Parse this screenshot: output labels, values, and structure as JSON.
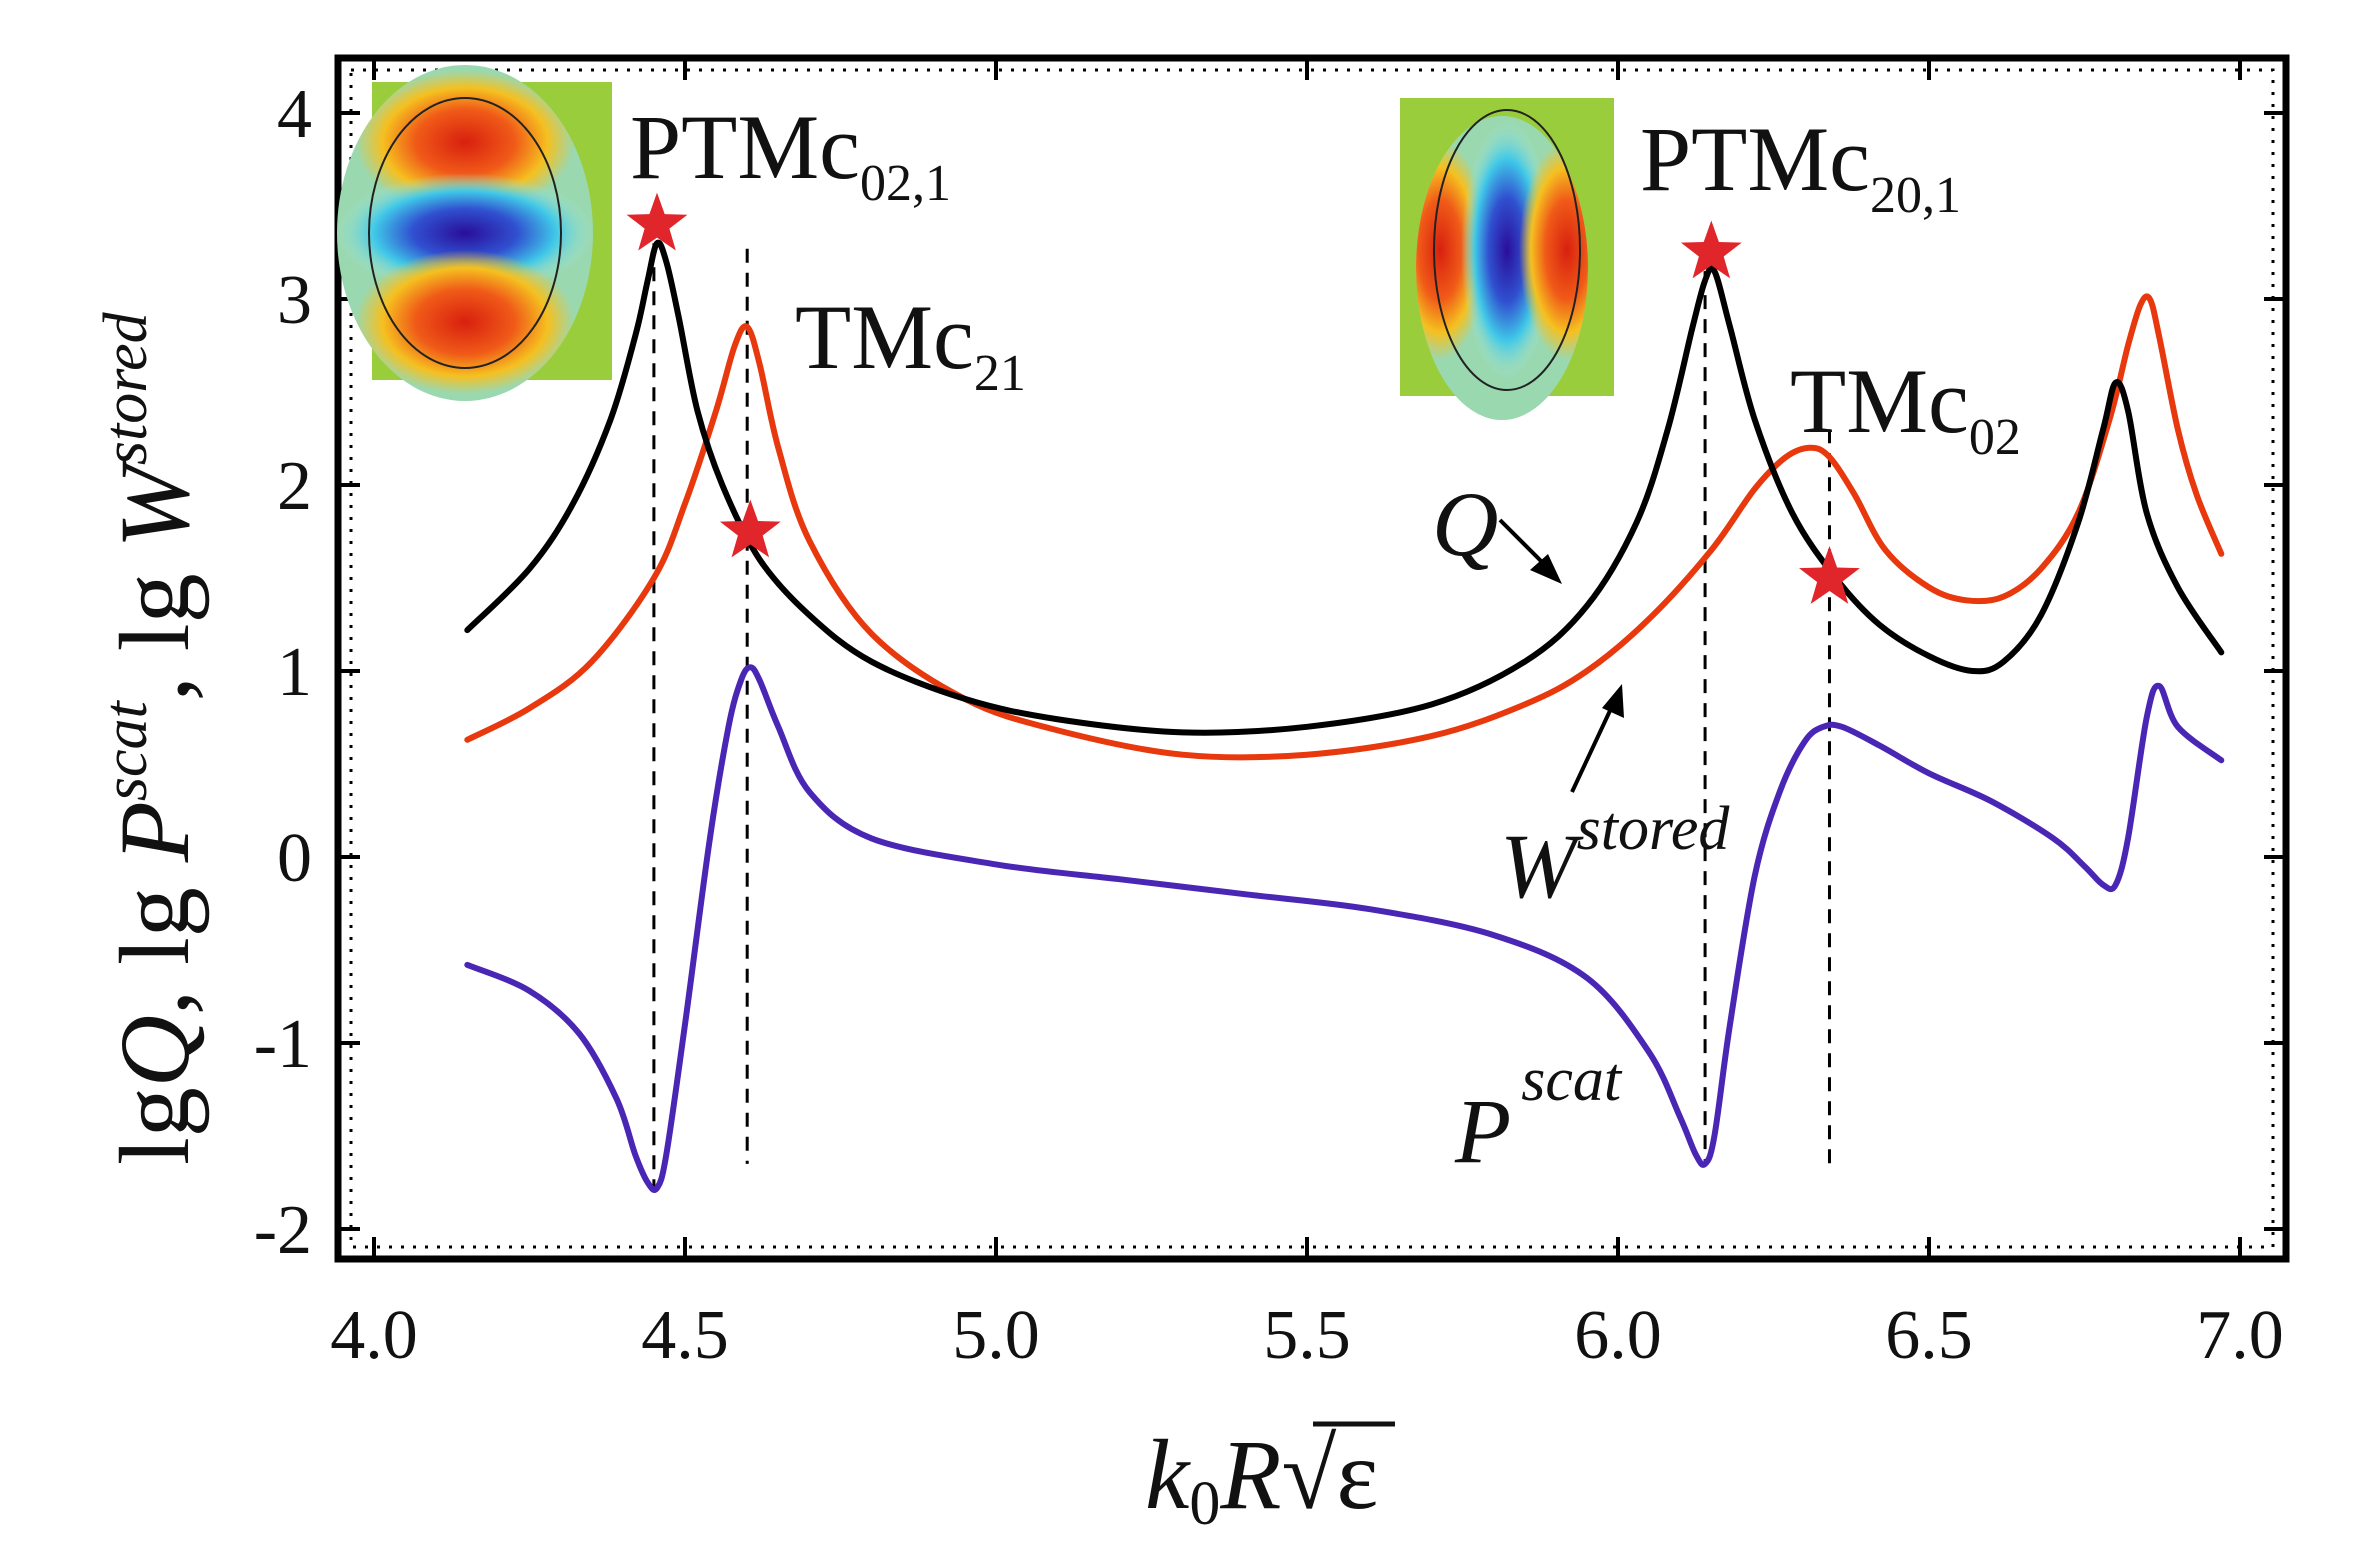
{
  "chart_data": {
    "type": "line",
    "title": "",
    "xlabel": {
      "k": "k",
      "sub": "0",
      "r": "R",
      "radical": "√",
      "eps": "ε"
    },
    "ylabel": {
      "p1": "lg",
      "q": "Q",
      "p2": ", lg ",
      "p": "P",
      "p_sup": "scat",
      "p3": ", lg ",
      "w": "W",
      "w_sup": "stored"
    },
    "xlim": [
      4.0,
      7.0
    ],
    "ylim": [
      -2,
      4.3
    ],
    "xticks": [
      4.0,
      4.5,
      5.0,
      5.5,
      6.0,
      6.5,
      7.0
    ],
    "xtick_labels": [
      "4.0",
      "4.5",
      "5.0",
      "5.5",
      "6.0",
      "6.5",
      "7.0"
    ],
    "yticks": [
      -2,
      -1,
      0,
      1,
      2,
      3,
      4
    ],
    "ytick_labels": [
      "-2",
      "-1",
      "0",
      "1",
      "2",
      "3",
      "4"
    ],
    "grid": false,
    "series": [
      {
        "name": "Q",
        "color": "#000000",
        "x": [
          4.15,
          4.25,
          4.32,
          4.38,
          4.42,
          4.44,
          4.455,
          4.47,
          4.49,
          4.52,
          4.56,
          4.62,
          4.7,
          4.8,
          4.95,
          5.1,
          5.3,
          5.5,
          5.7,
          5.85,
          5.95,
          6.03,
          6.08,
          6.12,
          6.14,
          6.155,
          6.18,
          6.22,
          6.28,
          6.35,
          6.42,
          6.5,
          6.57,
          6.62,
          6.68,
          6.74,
          6.78,
          6.8,
          6.82,
          6.85,
          6.9,
          6.97
        ],
        "y": [
          1.22,
          1.55,
          1.9,
          2.35,
          2.8,
          3.1,
          3.3,
          3.2,
          2.9,
          2.4,
          2.0,
          1.6,
          1.3,
          1.05,
          0.85,
          0.74,
          0.67,
          0.7,
          0.82,
          1.05,
          1.35,
          1.8,
          2.3,
          2.85,
          3.1,
          3.15,
          2.85,
          2.35,
          1.85,
          1.5,
          1.25,
          1.08,
          1.0,
          1.05,
          1.3,
          1.8,
          2.3,
          2.55,
          2.4,
          1.85,
          1.45,
          1.1
        ]
      },
      {
        "name": "W stored",
        "color": "#e8380d",
        "x": [
          4.15,
          4.25,
          4.35,
          4.45,
          4.5,
          4.55,
          4.58,
          4.6,
          4.62,
          4.65,
          4.7,
          4.8,
          4.95,
          5.1,
          5.3,
          5.5,
          5.7,
          5.85,
          5.95,
          6.05,
          6.15,
          6.22,
          6.27,
          6.31,
          6.34,
          6.38,
          6.43,
          6.5,
          6.56,
          6.62,
          6.68,
          6.74,
          6.79,
          6.82,
          6.84,
          6.855,
          6.87,
          6.9,
          6.93,
          6.97
        ],
        "y": [
          0.63,
          0.8,
          1.05,
          1.5,
          1.9,
          2.4,
          2.75,
          2.85,
          2.65,
          2.2,
          1.7,
          1.2,
          0.85,
          0.68,
          0.55,
          0.55,
          0.65,
          0.82,
          1.0,
          1.28,
          1.65,
          1.98,
          2.15,
          2.2,
          2.15,
          1.95,
          1.65,
          1.45,
          1.38,
          1.4,
          1.55,
          1.85,
          2.35,
          2.75,
          2.97,
          3.0,
          2.8,
          2.3,
          1.95,
          1.63
        ]
      },
      {
        "name": "P scat",
        "color": "#4a26b5",
        "x": [
          4.15,
          4.25,
          4.33,
          4.39,
          4.42,
          4.44,
          4.455,
          4.47,
          4.5,
          4.54,
          4.57,
          4.59,
          4.605,
          4.62,
          4.65,
          4.7,
          4.8,
          5.0,
          5.2,
          5.4,
          5.6,
          5.8,
          5.95,
          6.05,
          6.1,
          6.125,
          6.14,
          6.155,
          6.18,
          6.22,
          6.26,
          6.3,
          6.33,
          6.36,
          6.42,
          6.5,
          6.6,
          6.7,
          6.75,
          6.78,
          6.8,
          6.82,
          6.85,
          6.87,
          6.9,
          6.97
        ],
        "y": [
          -0.58,
          -0.72,
          -0.95,
          -1.3,
          -1.6,
          -1.75,
          -1.78,
          -1.6,
          -0.9,
          0.1,
          0.7,
          0.95,
          1.02,
          0.95,
          0.7,
          0.35,
          0.1,
          -0.04,
          -0.12,
          -0.2,
          -0.28,
          -0.42,
          -0.65,
          -1.05,
          -1.4,
          -1.6,
          -1.65,
          -1.5,
          -0.9,
          -0.1,
          0.35,
          0.62,
          0.7,
          0.7,
          0.6,
          0.45,
          0.3,
          0.1,
          -0.05,
          -0.15,
          -0.15,
          0.1,
          0.75,
          0.92,
          0.7,
          0.52
        ]
      }
    ],
    "vlines": [
      4.45,
      4.6,
      6.14,
      6.34
    ],
    "stars": [
      {
        "x": 4.455,
        "y": 3.4
      },
      {
        "x": 4.605,
        "y": 1.75
      },
      {
        "x": 6.15,
        "y": 3.25
      },
      {
        "x": 6.34,
        "y": 1.5
      }
    ],
    "annotations": [
      {
        "id": "ptmc021",
        "base": "PTMc",
        "sub": "02,1"
      },
      {
        "id": "tmc21",
        "base": "TMc",
        "sub": "21"
      },
      {
        "id": "ptmc201",
        "base": "PTMc",
        "sub": "20,1"
      },
      {
        "id": "tmc02",
        "base": "TMc",
        "sub": "02"
      }
    ],
    "series_labels": [
      {
        "id": "q",
        "text": "Q"
      },
      {
        "id": "w",
        "text": "W",
        "sup": "stored"
      },
      {
        "id": "p",
        "text": "P",
        "sup": "scat"
      }
    ],
    "colors": {
      "star": "#e0262a",
      "inset_bg": "#9acd3c",
      "field_red": "#e4321c",
      "field_blue": "#3a1ea8"
    }
  }
}
